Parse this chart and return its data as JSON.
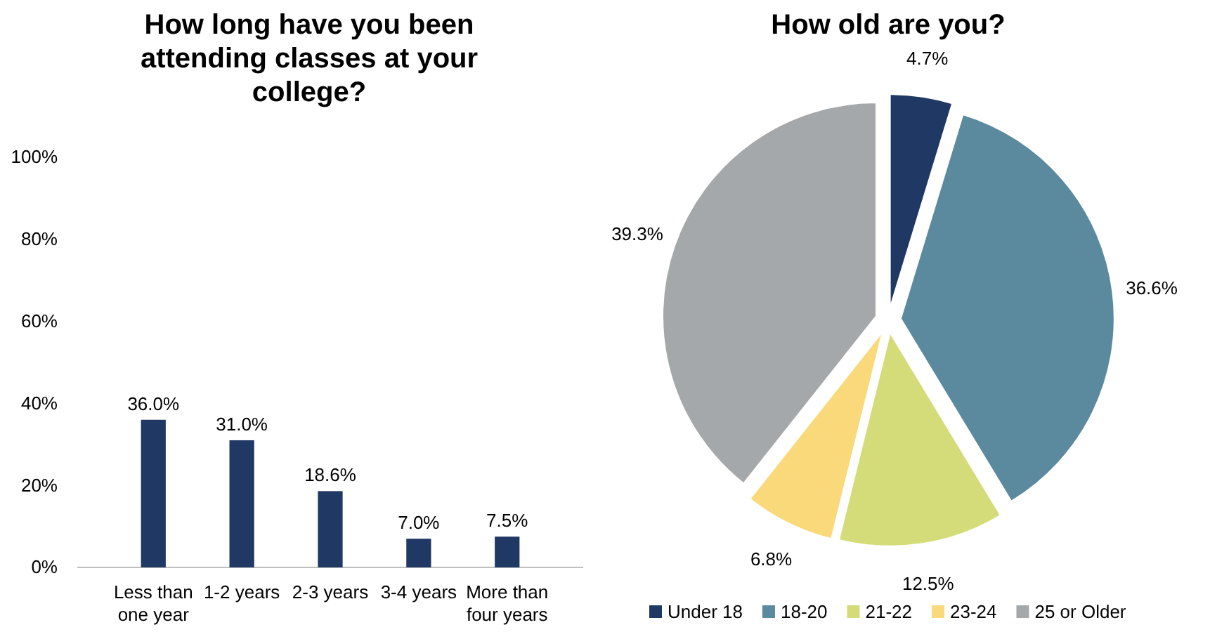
{
  "chart_data": [
    {
      "type": "bar",
      "title": "How long have you been attending classes at your college?",
      "categories": [
        "Less than one year",
        "1-2 years",
        "2-3 years",
        "3-4 years",
        "More than four years"
      ],
      "values": [
        36.0,
        31.0,
        18.6,
        7.0,
        7.5
      ],
      "value_labels": [
        "36.0%",
        "31.0%",
        "18.6%",
        "7.0%",
        "7.5%"
      ],
      "color": "#203864",
      "ylim": [
        0,
        100
      ],
      "yticks": [
        {
          "value": 0,
          "label": "0%"
        },
        {
          "value": 20,
          "label": "20%"
        },
        {
          "value": 40,
          "label": "40%"
        },
        {
          "value": 60,
          "label": "60%"
        },
        {
          "value": 80,
          "label": "80%"
        },
        {
          "value": 100,
          "label": "100%"
        }
      ],
      "grid": false
    },
    {
      "type": "pie",
      "title": "How old are you?",
      "categories": [
        "Under 18",
        "18-20",
        "21-22",
        "23-24",
        "25 or Older"
      ],
      "values": [
        4.7,
        36.6,
        12.5,
        6.8,
        39.3
      ],
      "value_labels": [
        "4.7%",
        "36.6%",
        "12.5%",
        "6.8%",
        "39.3%"
      ],
      "colors": [
        "#203864",
        "#5b8a9e",
        "#d4dc7a",
        "#f9d97a",
        "#a5a8ab"
      ],
      "legend": "bottom"
    }
  ]
}
